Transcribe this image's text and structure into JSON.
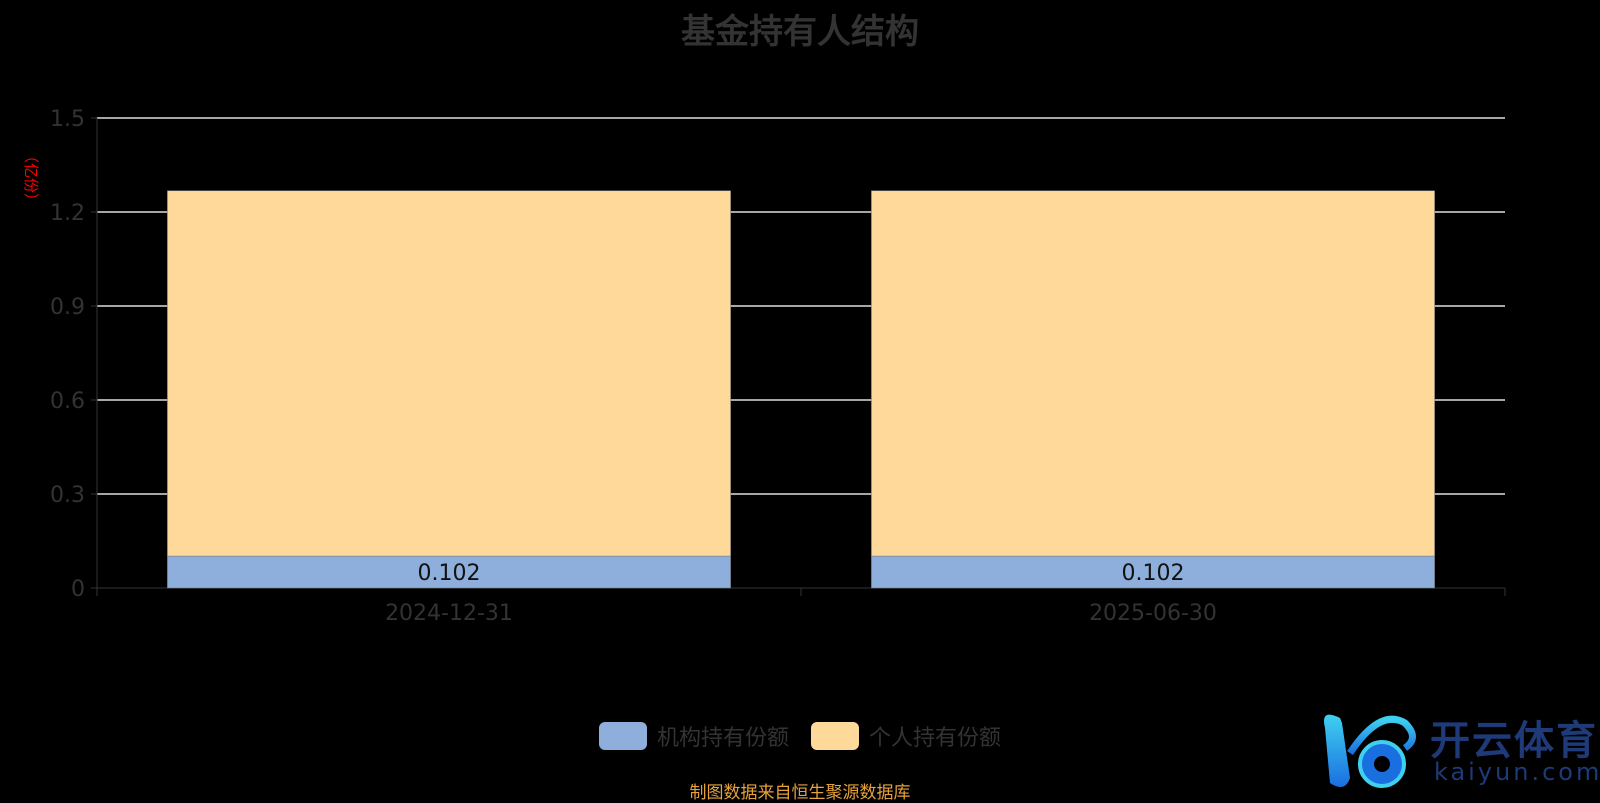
{
  "chart_data": {
    "type": "bar",
    "stacked": true,
    "title": "基金持有人结构",
    "ylabel": "（亿份）",
    "ylim": [
      0,
      1.5
    ],
    "yticks": [
      "0",
      "0.3",
      "0.6",
      "0.9",
      "1.2",
      "1.5"
    ],
    "categories": [
      "2024-12-31",
      "2025-06-30"
    ],
    "grid": true,
    "legend_position": "bottom",
    "series": [
      {
        "name": "机构持有份额",
        "values": [
          0.102,
          0.102
        ],
        "color": "#8eaedb",
        "labels": [
          "0.102",
          "0.102"
        ]
      },
      {
        "name": "个人持有份额",
        "values": [
          1.166,
          1.166
        ],
        "color": "#ffd99a"
      }
    ]
  },
  "source": "制图数据来自恒生聚源数据库",
  "watermark": {
    "cn": "开云体育",
    "en": "kaiyun.com"
  }
}
